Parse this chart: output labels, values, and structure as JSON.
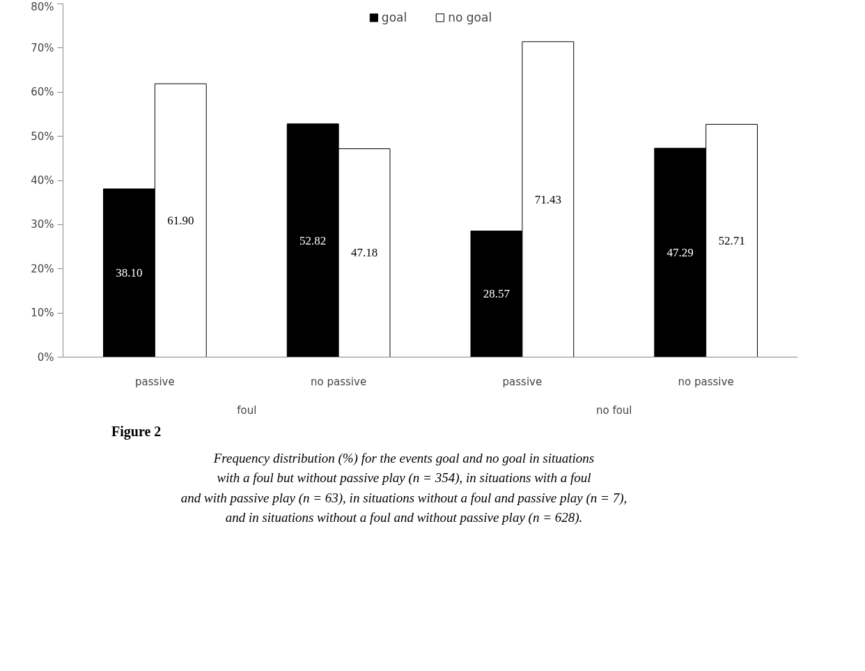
{
  "chart_data": {
    "type": "bar",
    "categories": [
      "passive",
      "no passive",
      "passive",
      "no passive"
    ],
    "series": [
      {
        "name": "goal",
        "color": "#000000",
        "values": [
          38.1,
          52.82,
          28.57,
          47.29
        ],
        "value_labels": [
          "38.10",
          "52.82",
          "28.57",
          "47.29"
        ]
      },
      {
        "name": "no goal",
        "color": "#ffffff",
        "values": [
          61.9,
          47.18,
          71.43,
          52.71
        ],
        "value_labels": [
          "61.90",
          "47.18",
          "71.43",
          "52.71"
        ]
      }
    ],
    "ylim": [
      0,
      80
    ],
    "yticks": [
      {
        "value": 0,
        "label": "0%"
      },
      {
        "value": 10,
        "label": "10%"
      },
      {
        "value": 20,
        "label": "20%"
      },
      {
        "value": 30,
        "label": "30%"
      },
      {
        "value": 40,
        "label": "40%"
      },
      {
        "value": 50,
        "label": "50%"
      },
      {
        "value": 60,
        "label": "60%"
      },
      {
        "value": 70,
        "label": "70%"
      },
      {
        "value": 80,
        "label": "80%"
      }
    ],
    "grid": false,
    "legend": "top",
    "annotations": [
      "foul",
      "no foul",
      "Figure 2",
      "Frequency distribution (%) for the events goal and no goal in situations",
      "with a foul but without passive play (n = 354), in situations with a foul",
      "and with passive play (n = 63), in situations without a foul and passive play (n = 7),",
      "and in situations without a foul and without passive play (n = 628)."
    ]
  }
}
